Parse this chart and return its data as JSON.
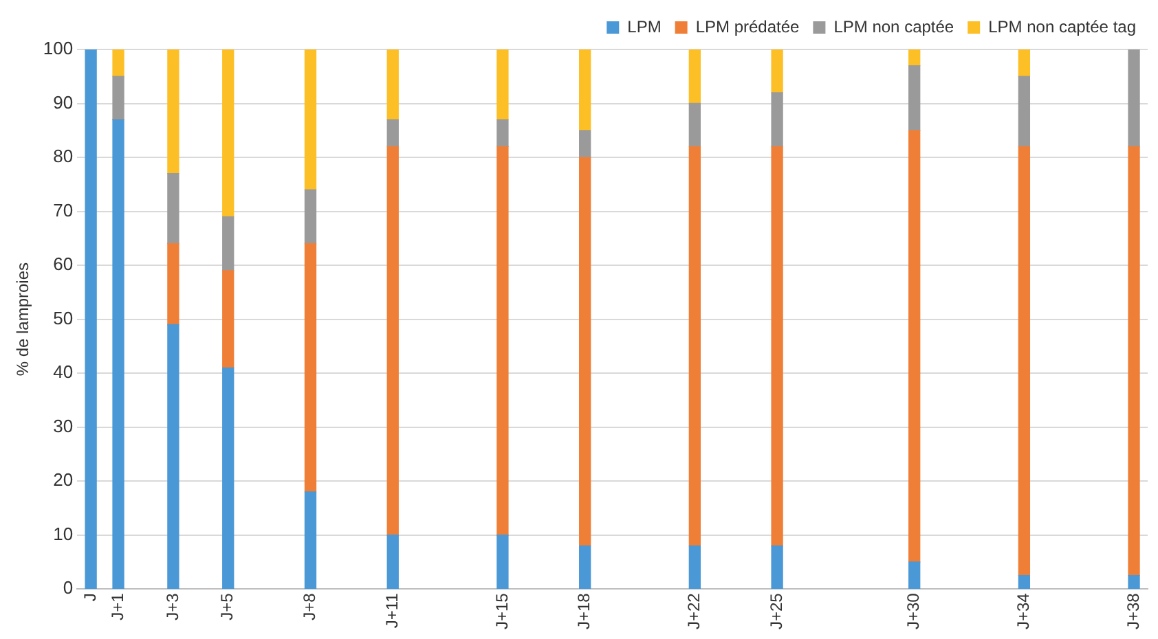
{
  "chart_data": {
    "type": "bar",
    "stacked": true,
    "ylabel": "% de lamproies",
    "categories": [
      "J",
      "J+1",
      null,
      "J+3",
      null,
      "J+5",
      null,
      null,
      "J+8",
      null,
      null,
      "J+11",
      null,
      null,
      null,
      "J+15",
      null,
      null,
      "J+18",
      null,
      null,
      null,
      "J+22",
      null,
      null,
      "J+25",
      null,
      null,
      null,
      null,
      "J+30",
      null,
      null,
      null,
      "J+34",
      null,
      null,
      null,
      "J+38"
    ],
    "ylim": [
      0,
      100
    ],
    "yticks": [
      0,
      10,
      20,
      30,
      40,
      50,
      60,
      70,
      80,
      90,
      100
    ],
    "grid": "y",
    "legend": "top right",
    "series": [
      {
        "name": "LPM",
        "color": "#4a98d6",
        "values": [
          100,
          87,
          null,
          49,
          null,
          41,
          null,
          null,
          18,
          null,
          null,
          10,
          null,
          null,
          null,
          10,
          null,
          null,
          8,
          null,
          null,
          null,
          8,
          null,
          null,
          8,
          null,
          null,
          null,
          null,
          5,
          null,
          null,
          null,
          2.5,
          null,
          null,
          null,
          2.5
        ]
      },
      {
        "name": "LPM prédatée",
        "color": "#ef7f37",
        "values": [
          0,
          0,
          null,
          15,
          null,
          18,
          null,
          null,
          46,
          null,
          null,
          72,
          null,
          null,
          null,
          72,
          null,
          null,
          72,
          null,
          null,
          null,
          74,
          null,
          null,
          74,
          null,
          null,
          null,
          null,
          80,
          null,
          null,
          null,
          79.5,
          null,
          null,
          null,
          79.5
        ]
      },
      {
        "name": "LPM non captée",
        "color": "#9a9a9a",
        "values": [
          0,
          8,
          null,
          13,
          null,
          10,
          null,
          null,
          10,
          null,
          null,
          5,
          null,
          null,
          null,
          5,
          null,
          null,
          5,
          null,
          null,
          null,
          8,
          null,
          null,
          10,
          null,
          null,
          null,
          null,
          12,
          null,
          null,
          null,
          13,
          null,
          null,
          null,
          18
        ]
      },
      {
        "name": "LPM non captée tag",
        "color": "#fdbf26",
        "values": [
          0,
          5,
          null,
          23,
          null,
          31,
          null,
          null,
          26,
          null,
          null,
          13,
          null,
          null,
          null,
          13,
          null,
          null,
          15,
          null,
          null,
          null,
          10,
          null,
          null,
          8,
          null,
          null,
          null,
          null,
          3,
          null,
          null,
          null,
          5,
          null,
          null,
          null,
          0
        ]
      }
    ]
  }
}
